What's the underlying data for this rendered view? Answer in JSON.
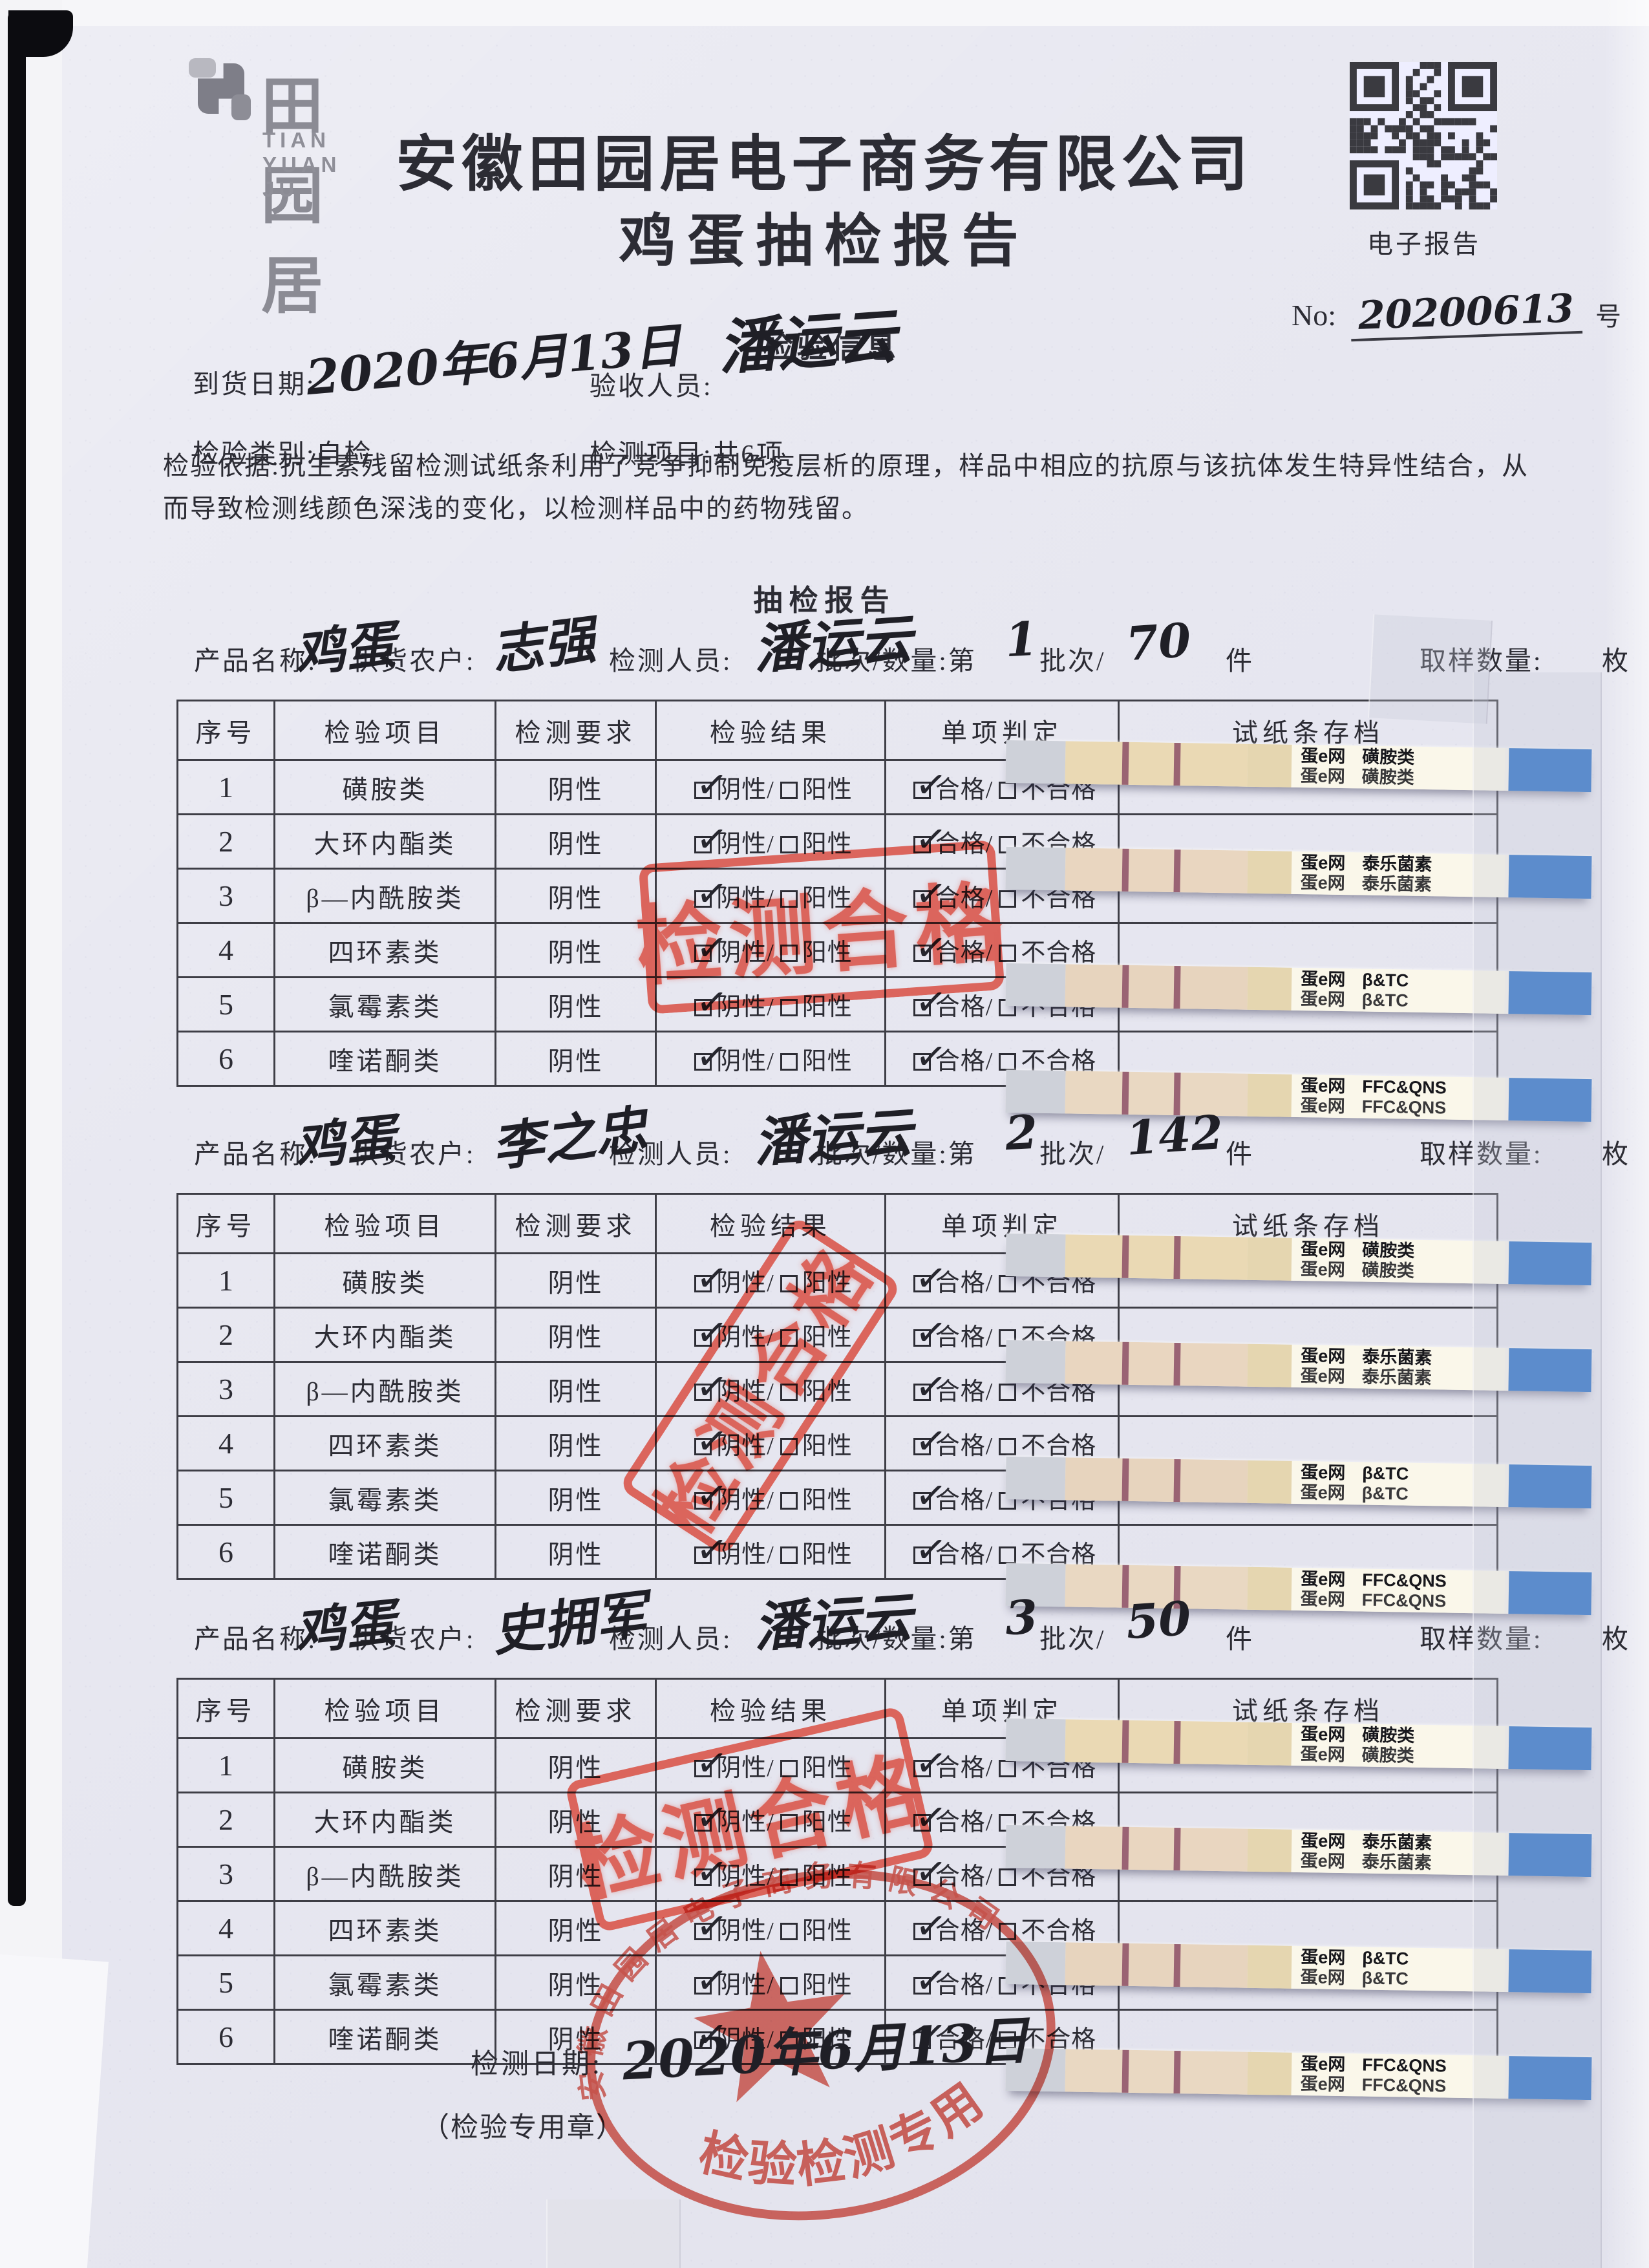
{
  "header": {
    "logo_cn": "田园居",
    "logo_pinyin": "TIAN YUAN JU",
    "company": "安徽田园居电子商务有限公司",
    "title": "鸡蛋抽检报告",
    "qr_label": "电子报告",
    "no_label": "No:",
    "no_value": "20200613",
    "no_suffix": "号"
  },
  "info": {
    "section_title": "检验信息",
    "arrival_label": "到货日期:",
    "arrival_value": "2020年6月13日",
    "receiver_label": "验收人员:",
    "receiver_value": "潘运云",
    "category": "检验类别:自检",
    "items": "检测项目:共6项",
    "basis": "检验依据:抗生素残留检测试纸条利用了竞争抑制免疫层析的原理，样品中相应的抗原与该抗体发生特异性结合，从而导致检测线颜色深浅的变化，以检测样品中的药物残留。"
  },
  "report": {
    "section_title": "抽检报告",
    "labels": {
      "product": "产品名称:",
      "farmer": "供货农户:",
      "inspector": "检测人员:",
      "batch_prefix": "批次/数量:第",
      "batch_mid": "批次/",
      "piece": "件",
      "sample": "取样数量:",
      "unit": "枚"
    },
    "batches": [
      {
        "product": "鸡蛋",
        "farmer": "志强",
        "inspector": "潘运云",
        "batch_no": "1",
        "quantity": "70"
      },
      {
        "product": "鸡蛋",
        "farmer": "李之忠",
        "inspector": "潘运云",
        "batch_no": "2",
        "quantity": "142"
      },
      {
        "product": "鸡蛋",
        "farmer": "史拥军",
        "inspector": "潘运云",
        "batch_no": "3",
        "quantity": "50"
      }
    ],
    "table_headers": [
      "序号",
      "检验项目",
      "检测要求",
      "检验结果",
      "单项判定",
      "试纸条存档"
    ],
    "rows": [
      {
        "no": "1",
        "item": "磺胺类"
      },
      {
        "no": "2",
        "item": "大环内酯类"
      },
      {
        "no": "3",
        "item": "β—内酰胺类"
      },
      {
        "no": "4",
        "item": "四环素类"
      },
      {
        "no": "5",
        "item": "氯霉素类"
      },
      {
        "no": "6",
        "item": "喹诺酮类"
      }
    ],
    "requirement": "阴性",
    "result_negative": "阴性/",
    "result_positive": "阳性",
    "judge_pass": "合格/",
    "judge_fail": "不合格",
    "stamp_pass": "检测合格",
    "strips": [
      {
        "brand": "蛋e网",
        "type": "磺胺类"
      },
      {
        "brand": "蛋e网",
        "type": "泰乐菌素"
      },
      {
        "brand": "蛋e网",
        "type": "β&TC"
      },
      {
        "brand": "蛋e网",
        "type": "FFC&QNS"
      }
    ]
  },
  "footer": {
    "date_label": "检测日期:",
    "date_value": "2020年6月13日",
    "seal_note": "（检验专用章）",
    "round_stamp_company": "安徽田园居电子商务有限公司",
    "round_stamp_title": "检验检测专用章"
  },
  "colors": {
    "stamp_red": "#d8483b",
    "strip_blue": "#2e72c8",
    "paper": "#e8e8f1"
  }
}
